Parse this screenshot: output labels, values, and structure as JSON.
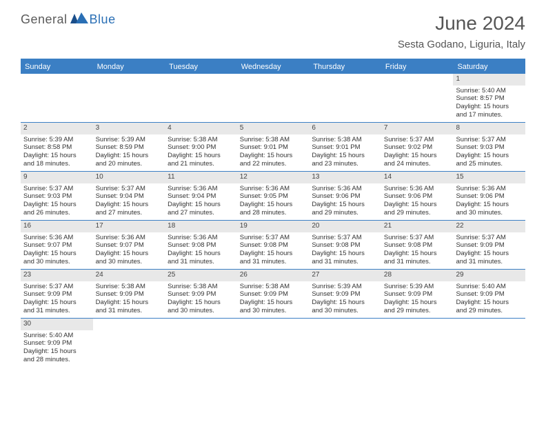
{
  "logo": {
    "text1": "General",
    "text2": "Blue"
  },
  "title": "June 2024",
  "subtitle": "Sesta Godano, Liguria, Italy",
  "colors": {
    "header_bg": "#3b7fc4",
    "header_text": "#ffffff",
    "num_bg": "#e8e8e8",
    "border": "#3b7fc4",
    "logo_gray": "#5a5a5a",
    "logo_blue": "#2a6fb5"
  },
  "day_headers": [
    "Sunday",
    "Monday",
    "Tuesday",
    "Wednesday",
    "Thursday",
    "Friday",
    "Saturday"
  ],
  "weeks": [
    [
      {
        "n": "",
        "empty": true
      },
      {
        "n": "",
        "empty": true
      },
      {
        "n": "",
        "empty": true
      },
      {
        "n": "",
        "empty": true
      },
      {
        "n": "",
        "empty": true
      },
      {
        "n": "",
        "empty": true
      },
      {
        "n": "1",
        "sr": "Sunrise: 5:40 AM",
        "ss": "Sunset: 8:57 PM",
        "d1": "Daylight: 15 hours",
        "d2": "and 17 minutes."
      }
    ],
    [
      {
        "n": "2",
        "sr": "Sunrise: 5:39 AM",
        "ss": "Sunset: 8:58 PM",
        "d1": "Daylight: 15 hours",
        "d2": "and 18 minutes."
      },
      {
        "n": "3",
        "sr": "Sunrise: 5:39 AM",
        "ss": "Sunset: 8:59 PM",
        "d1": "Daylight: 15 hours",
        "d2": "and 20 minutes."
      },
      {
        "n": "4",
        "sr": "Sunrise: 5:38 AM",
        "ss": "Sunset: 9:00 PM",
        "d1": "Daylight: 15 hours",
        "d2": "and 21 minutes."
      },
      {
        "n": "5",
        "sr": "Sunrise: 5:38 AM",
        "ss": "Sunset: 9:01 PM",
        "d1": "Daylight: 15 hours",
        "d2": "and 22 minutes."
      },
      {
        "n": "6",
        "sr": "Sunrise: 5:38 AM",
        "ss": "Sunset: 9:01 PM",
        "d1": "Daylight: 15 hours",
        "d2": "and 23 minutes."
      },
      {
        "n": "7",
        "sr": "Sunrise: 5:37 AM",
        "ss": "Sunset: 9:02 PM",
        "d1": "Daylight: 15 hours",
        "d2": "and 24 minutes."
      },
      {
        "n": "8",
        "sr": "Sunrise: 5:37 AM",
        "ss": "Sunset: 9:03 PM",
        "d1": "Daylight: 15 hours",
        "d2": "and 25 minutes."
      }
    ],
    [
      {
        "n": "9",
        "sr": "Sunrise: 5:37 AM",
        "ss": "Sunset: 9:03 PM",
        "d1": "Daylight: 15 hours",
        "d2": "and 26 minutes."
      },
      {
        "n": "10",
        "sr": "Sunrise: 5:37 AM",
        "ss": "Sunset: 9:04 PM",
        "d1": "Daylight: 15 hours",
        "d2": "and 27 minutes."
      },
      {
        "n": "11",
        "sr": "Sunrise: 5:36 AM",
        "ss": "Sunset: 9:04 PM",
        "d1": "Daylight: 15 hours",
        "d2": "and 27 minutes."
      },
      {
        "n": "12",
        "sr": "Sunrise: 5:36 AM",
        "ss": "Sunset: 9:05 PM",
        "d1": "Daylight: 15 hours",
        "d2": "and 28 minutes."
      },
      {
        "n": "13",
        "sr": "Sunrise: 5:36 AM",
        "ss": "Sunset: 9:06 PM",
        "d1": "Daylight: 15 hours",
        "d2": "and 29 minutes."
      },
      {
        "n": "14",
        "sr": "Sunrise: 5:36 AM",
        "ss": "Sunset: 9:06 PM",
        "d1": "Daylight: 15 hours",
        "d2": "and 29 minutes."
      },
      {
        "n": "15",
        "sr": "Sunrise: 5:36 AM",
        "ss": "Sunset: 9:06 PM",
        "d1": "Daylight: 15 hours",
        "d2": "and 30 minutes."
      }
    ],
    [
      {
        "n": "16",
        "sr": "Sunrise: 5:36 AM",
        "ss": "Sunset: 9:07 PM",
        "d1": "Daylight: 15 hours",
        "d2": "and 30 minutes."
      },
      {
        "n": "17",
        "sr": "Sunrise: 5:36 AM",
        "ss": "Sunset: 9:07 PM",
        "d1": "Daylight: 15 hours",
        "d2": "and 30 minutes."
      },
      {
        "n": "18",
        "sr": "Sunrise: 5:36 AM",
        "ss": "Sunset: 9:08 PM",
        "d1": "Daylight: 15 hours",
        "d2": "and 31 minutes."
      },
      {
        "n": "19",
        "sr": "Sunrise: 5:37 AM",
        "ss": "Sunset: 9:08 PM",
        "d1": "Daylight: 15 hours",
        "d2": "and 31 minutes."
      },
      {
        "n": "20",
        "sr": "Sunrise: 5:37 AM",
        "ss": "Sunset: 9:08 PM",
        "d1": "Daylight: 15 hours",
        "d2": "and 31 minutes."
      },
      {
        "n": "21",
        "sr": "Sunrise: 5:37 AM",
        "ss": "Sunset: 9:08 PM",
        "d1": "Daylight: 15 hours",
        "d2": "and 31 minutes."
      },
      {
        "n": "22",
        "sr": "Sunrise: 5:37 AM",
        "ss": "Sunset: 9:09 PM",
        "d1": "Daylight: 15 hours",
        "d2": "and 31 minutes."
      }
    ],
    [
      {
        "n": "23",
        "sr": "Sunrise: 5:37 AM",
        "ss": "Sunset: 9:09 PM",
        "d1": "Daylight: 15 hours",
        "d2": "and 31 minutes."
      },
      {
        "n": "24",
        "sr": "Sunrise: 5:38 AM",
        "ss": "Sunset: 9:09 PM",
        "d1": "Daylight: 15 hours",
        "d2": "and 31 minutes."
      },
      {
        "n": "25",
        "sr": "Sunrise: 5:38 AM",
        "ss": "Sunset: 9:09 PM",
        "d1": "Daylight: 15 hours",
        "d2": "and 30 minutes."
      },
      {
        "n": "26",
        "sr": "Sunrise: 5:38 AM",
        "ss": "Sunset: 9:09 PM",
        "d1": "Daylight: 15 hours",
        "d2": "and 30 minutes."
      },
      {
        "n": "27",
        "sr": "Sunrise: 5:39 AM",
        "ss": "Sunset: 9:09 PM",
        "d1": "Daylight: 15 hours",
        "d2": "and 30 minutes."
      },
      {
        "n": "28",
        "sr": "Sunrise: 5:39 AM",
        "ss": "Sunset: 9:09 PM",
        "d1": "Daylight: 15 hours",
        "d2": "and 29 minutes."
      },
      {
        "n": "29",
        "sr": "Sunrise: 5:40 AM",
        "ss": "Sunset: 9:09 PM",
        "d1": "Daylight: 15 hours",
        "d2": "and 29 minutes."
      }
    ],
    [
      {
        "n": "30",
        "sr": "Sunrise: 5:40 AM",
        "ss": "Sunset: 9:09 PM",
        "d1": "Daylight: 15 hours",
        "d2": "and 28 minutes."
      },
      {
        "n": "",
        "empty": true
      },
      {
        "n": "",
        "empty": true
      },
      {
        "n": "",
        "empty": true
      },
      {
        "n": "",
        "empty": true
      },
      {
        "n": "",
        "empty": true
      },
      {
        "n": "",
        "empty": true
      }
    ]
  ]
}
